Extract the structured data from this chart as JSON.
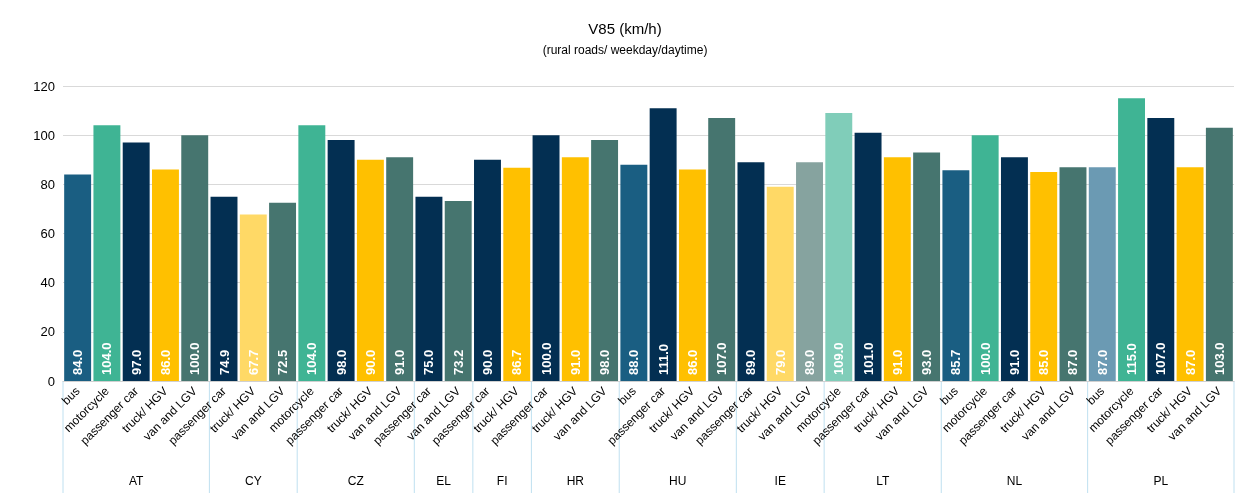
{
  "chart_data": {
    "type": "bar",
    "title": "V85 (km/h)",
    "subtitle": "(rural roads/ weekday/daytime)",
    "categories": [
      "bus",
      "motorcycle",
      "passenger car",
      "truck/ HGV",
      "van and LGV",
      "passenger car",
      "truck/ HGV",
      "van and LGV",
      "motorcycle",
      "passenger car",
      "truck/ HGV",
      "van and LGV",
      "passenger car",
      "van and LGV",
      "passenger car",
      "truck/ HGV",
      "passenger car",
      "truck/ HGV",
      "van and LGV",
      "bus",
      "passenger car",
      "truck/ HGV",
      "van and LGV",
      "passenger car",
      "truck/ HGV",
      "van and LGV",
      "motorcycle",
      "passenger car",
      "truck/ HGV",
      "van and LGV",
      "bus",
      "motorcycle",
      "passenger car",
      "truck/ HGV",
      "van and LGV",
      "bus",
      "motorcycle",
      "passenger car",
      "truck/ HGV",
      "van and LGV"
    ],
    "values": [
      84.0,
      104.0,
      97.0,
      86.0,
      100.0,
      74.9,
      67.7,
      72.5,
      104.0,
      98.0,
      90.0,
      91.0,
      75.0,
      73.2,
      90.0,
      86.7,
      100.0,
      91.0,
      98.0,
      88.0,
      111.0,
      86.0,
      107.0,
      89.0,
      79.0,
      89.0,
      109.0,
      101.0,
      91.0,
      93.0,
      85.7,
      100.0,
      91.0,
      85.0,
      87.0,
      87.0,
      115.0,
      107.0,
      87.0,
      103.0
    ],
    "value_labels": [
      "84.0",
      "104.0",
      "97.0",
      "86.0",
      "100.0",
      "74.9",
      "67.7",
      "72.5",
      "104.0",
      "98.0",
      "90.0",
      "91.0",
      "75.0",
      "73.2",
      "90.0",
      "86.7",
      "100.0",
      "91.0",
      "98.0",
      "88.0",
      "111.0",
      "86.0",
      "107.0",
      "89.0",
      "79.0",
      "89.0",
      "109.0",
      "101.0",
      "91.0",
      "93.0",
      "85.7",
      "100.0",
      "91.0",
      "85.0",
      "87.0",
      "87.0",
      "115.0",
      "107.0",
      "87.0",
      "103.0"
    ],
    "colors": [
      "#1a5e82",
      "#3fb494",
      "#032f52",
      "#ffc000",
      "#46756f",
      "#032f52",
      "#ffd966",
      "#46756f",
      "#3fb494",
      "#032f52",
      "#ffc000",
      "#46756f",
      "#032f52",
      "#46756f",
      "#032f52",
      "#ffc000",
      "#032f52",
      "#ffc000",
      "#46756f",
      "#1a5e82",
      "#032f52",
      "#ffc000",
      "#46756f",
      "#032f52",
      "#ffd966",
      "#86a39f",
      "#80cdb9",
      "#032f52",
      "#ffc000",
      "#46756f",
      "#1a5e82",
      "#3fb494",
      "#032f52",
      "#ffc000",
      "#46756f",
      "#6b9ab3",
      "#3fb494",
      "#032f52",
      "#ffc000",
      "#46756f"
    ],
    "annotations": [
      "AT",
      "CY",
      "CZ",
      "EL",
      "FI",
      "HR",
      "HU",
      "IE",
      "LT",
      "NL",
      "PL"
    ],
    "ylim": [
      0,
      120
    ],
    "yticks": [
      0,
      20,
      40,
      60,
      80,
      100,
      120
    ],
    "grid": "y"
  }
}
